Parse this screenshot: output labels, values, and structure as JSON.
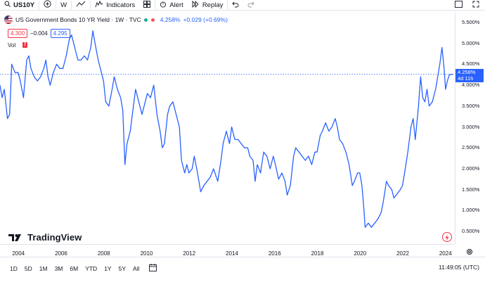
{
  "toolbar": {
    "symbol": "US10Y",
    "interval": "W",
    "indicators": "Indicators",
    "alert": "Alert",
    "replay": "Replay"
  },
  "legend": {
    "title": "US Government Bonds 10 YR Yield · 1W · TVC",
    "price": "4.258%",
    "change": "+0.029 (+0.69%)"
  },
  "quote": {
    "bid": "4.300",
    "spread": "−0.004",
    "ask": "4.295"
  },
  "vol_label": "Vol",
  "price_tag": {
    "value": "4.258%",
    "countdown": "4d 11h"
  },
  "watermark": "TradingView",
  "ranges": [
    "1D",
    "5D",
    "1M",
    "3M",
    "6M",
    "YTD",
    "1Y",
    "5Y",
    "All"
  ],
  "time": "11:49:05 (UTC)",
  "colors": {
    "line": "#2962ff",
    "accent": "#2962ff",
    "down": "#f23645",
    "up": "#22ab94"
  },
  "chart_data": {
    "type": "line",
    "title": "US Government Bonds 10 YR Yield · 1W · TVC",
    "xlabel": "",
    "ylabel": "",
    "x_ticks": [
      "2004",
      "2006",
      "2008",
      "2010",
      "2012",
      "2014",
      "2016",
      "2018",
      "2020",
      "2022",
      "2024"
    ],
    "y_ticks": [
      "5.500%",
      "5.000%",
      "4.500%",
      "4.000%",
      "3.500%",
      "3.000%",
      "2.500%",
      "2.000%",
      "1.500%",
      "1.000%",
      "0.500%"
    ],
    "xlim": [
      2003.1,
      2024.4
    ],
    "ylim": [
      0.2,
      5.75
    ],
    "series": [
      {
        "values": [
          [
            2003.1,
            4.0
          ],
          [
            2003.2,
            3.7
          ],
          [
            2003.3,
            3.9
          ],
          [
            2003.45,
            3.2
          ],
          [
            2003.55,
            3.3
          ],
          [
            2003.65,
            4.5
          ],
          [
            2003.8,
            4.3
          ],
          [
            2003.95,
            4.3
          ],
          [
            2004.05,
            4.1
          ],
          [
            2004.2,
            3.7
          ],
          [
            2004.35,
            4.6
          ],
          [
            2004.45,
            4.7
          ],
          [
            2004.55,
            4.4
          ],
          [
            2004.7,
            4.2
          ],
          [
            2004.85,
            4.1
          ],
          [
            2005.0,
            4.2
          ],
          [
            2005.15,
            4.4
          ],
          [
            2005.25,
            4.6
          ],
          [
            2005.35,
            4.2
          ],
          [
            2005.45,
            4.0
          ],
          [
            2005.6,
            4.3
          ],
          [
            2005.75,
            4.5
          ],
          [
            2005.9,
            4.4
          ],
          [
            2006.05,
            4.4
          ],
          [
            2006.2,
            4.7
          ],
          [
            2006.35,
            5.1
          ],
          [
            2006.45,
            5.2
          ],
          [
            2006.6,
            4.9
          ],
          [
            2006.75,
            4.6
          ],
          [
            2006.9,
            4.6
          ],
          [
            2007.05,
            4.7
          ],
          [
            2007.2,
            4.6
          ],
          [
            2007.35,
            4.9
          ],
          [
            2007.45,
            5.3
          ],
          [
            2007.55,
            5.0
          ],
          [
            2007.7,
            4.6
          ],
          [
            2007.85,
            4.3
          ],
          [
            2007.95,
            4.1
          ],
          [
            2008.05,
            3.6
          ],
          [
            2008.2,
            3.5
          ],
          [
            2008.35,
            3.9
          ],
          [
            2008.45,
            4.2
          ],
          [
            2008.6,
            3.9
          ],
          [
            2008.75,
            3.7
          ],
          [
            2008.85,
            3.4
          ],
          [
            2008.95,
            2.1
          ],
          [
            2009.05,
            2.6
          ],
          [
            2009.2,
            2.9
          ],
          [
            2009.35,
            3.5
          ],
          [
            2009.45,
            3.9
          ],
          [
            2009.6,
            3.6
          ],
          [
            2009.75,
            3.3
          ],
          [
            2009.9,
            3.6
          ],
          [
            2010.0,
            3.8
          ],
          [
            2010.15,
            3.7
          ],
          [
            2010.3,
            4.0
          ],
          [
            2010.45,
            3.3
          ],
          [
            2010.6,
            2.9
          ],
          [
            2010.7,
            2.5
          ],
          [
            2010.8,
            2.6
          ],
          [
            2010.95,
            3.3
          ],
          [
            2011.05,
            3.5
          ],
          [
            2011.2,
            3.6
          ],
          [
            2011.35,
            3.3
          ],
          [
            2011.5,
            3.0
          ],
          [
            2011.6,
            2.2
          ],
          [
            2011.75,
            1.9
          ],
          [
            2011.85,
            2.1
          ],
          [
            2011.95,
            1.9
          ],
          [
            2012.1,
            2.0
          ],
          [
            2012.2,
            2.3
          ],
          [
            2012.35,
            1.9
          ],
          [
            2012.5,
            1.45
          ],
          [
            2012.65,
            1.6
          ],
          [
            2012.8,
            1.7
          ],
          [
            2012.95,
            1.8
          ],
          [
            2013.1,
            2.0
          ],
          [
            2013.3,
            1.7
          ],
          [
            2013.45,
            2.2
          ],
          [
            2013.55,
            2.6
          ],
          [
            2013.7,
            2.9
          ],
          [
            2013.85,
            2.6
          ],
          [
            2013.95,
            3.0
          ],
          [
            2014.1,
            2.7
          ],
          [
            2014.25,
            2.7
          ],
          [
            2014.4,
            2.6
          ],
          [
            2014.55,
            2.5
          ],
          [
            2014.7,
            2.5
          ],
          [
            2014.8,
            2.3
          ],
          [
            2014.95,
            2.2
          ],
          [
            2015.05,
            1.7
          ],
          [
            2015.15,
            2.1
          ],
          [
            2015.3,
            1.9
          ],
          [
            2015.45,
            2.4
          ],
          [
            2015.6,
            2.3
          ],
          [
            2015.75,
            2.0
          ],
          [
            2015.9,
            2.3
          ],
          [
            2016.0,
            2.1
          ],
          [
            2016.15,
            1.75
          ],
          [
            2016.3,
            1.9
          ],
          [
            2016.45,
            1.7
          ],
          [
            2016.55,
            1.37
          ],
          [
            2016.7,
            1.6
          ],
          [
            2016.85,
            2.3
          ],
          [
            2016.95,
            2.5
          ],
          [
            2017.1,
            2.4
          ],
          [
            2017.25,
            2.3
          ],
          [
            2017.4,
            2.2
          ],
          [
            2017.55,
            2.3
          ],
          [
            2017.7,
            2.1
          ],
          [
            2017.85,
            2.4
          ],
          [
            2017.95,
            2.4
          ],
          [
            2018.1,
            2.8
          ],
          [
            2018.2,
            2.9
          ],
          [
            2018.35,
            3.1
          ],
          [
            2018.5,
            2.9
          ],
          [
            2018.65,
            3.0
          ],
          [
            2018.8,
            3.2
          ],
          [
            2018.9,
            3.0
          ],
          [
            2019.0,
            2.7
          ],
          [
            2019.15,
            2.6
          ],
          [
            2019.3,
            2.4
          ],
          [
            2019.45,
            2.1
          ],
          [
            2019.6,
            1.6
          ],
          [
            2019.7,
            1.7
          ],
          [
            2019.85,
            1.9
          ],
          [
            2019.95,
            1.9
          ],
          [
            2020.05,
            1.6
          ],
          [
            2020.15,
            1.0
          ],
          [
            2020.2,
            0.6
          ],
          [
            2020.35,
            0.7
          ],
          [
            2020.5,
            0.6
          ],
          [
            2020.65,
            0.7
          ],
          [
            2020.8,
            0.8
          ],
          [
            2020.95,
            0.95
          ],
          [
            2021.05,
            1.2
          ],
          [
            2021.2,
            1.7
          ],
          [
            2021.3,
            1.6
          ],
          [
            2021.45,
            1.5
          ],
          [
            2021.55,
            1.3
          ],
          [
            2021.7,
            1.4
          ],
          [
            2021.85,
            1.5
          ],
          [
            2021.95,
            1.6
          ],
          [
            2022.05,
            1.9
          ],
          [
            2022.2,
            2.4
          ],
          [
            2022.35,
            3.0
          ],
          [
            2022.45,
            3.2
          ],
          [
            2022.55,
            2.7
          ],
          [
            2022.7,
            3.5
          ],
          [
            2022.8,
            4.2
          ],
          [
            2022.9,
            3.7
          ],
          [
            2023.0,
            3.6
          ],
          [
            2023.1,
            3.9
          ],
          [
            2023.2,
            3.5
          ],
          [
            2023.35,
            3.6
          ],
          [
            2023.5,
            3.9
          ],
          [
            2023.6,
            4.2
          ],
          [
            2023.7,
            4.5
          ],
          [
            2023.8,
            4.9
          ],
          [
            2023.9,
            4.4
          ],
          [
            2023.97,
            3.9
          ],
          [
            2024.05,
            4.1
          ],
          [
            2024.15,
            4.25
          ],
          [
            2024.3,
            4.26
          ]
        ]
      }
    ]
  }
}
